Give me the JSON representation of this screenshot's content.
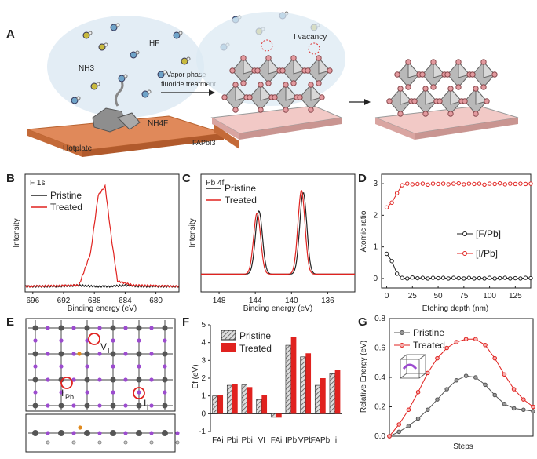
{
  "panel_labels": {
    "A": "A",
    "B": "B",
    "C": "C",
    "D": "D",
    "E": "E",
    "F": "F",
    "G": "G"
  },
  "scheme": {
    "nh3": "NH3",
    "hf": "HF",
    "nh4f": "NH4F",
    "hotplate": "Hotplate",
    "arrow_label_1": "Vapor phase",
    "arrow_label_2": "fluoride treatment",
    "vacancy": "I vacancy",
    "fapbi3": "FAPbI3"
  },
  "colors": {
    "pristine": "#222222",
    "treated": "#e0221f",
    "bar_treated": "#e0221f",
    "hotplate": "#e0895a",
    "substrate": "#f2c9c6"
  },
  "chart_data": [
    {
      "id": "B",
      "type": "line",
      "tag": "F 1s",
      "xlabel": "Binding energy (eV)",
      "ylabel": "Intensity",
      "xlim": [
        697,
        677
      ],
      "xticks": [
        696,
        692,
        688,
        684,
        680
      ],
      "legend": [
        "Pristine",
        "Treated"
      ],
      "series": [
        {
          "name": "Pristine",
          "x": [
            697,
            693,
            690,
            688,
            686,
            684,
            682,
            677
          ],
          "y": [
            0.05,
            0.05,
            0.06,
            0.05,
            0.05,
            0.06,
            0.05,
            0.05
          ]
        },
        {
          "name": "Treated",
          "x": [
            697,
            690,
            688.5,
            687.5,
            686.6,
            685.8,
            685,
            683,
            677
          ],
          "y": [
            0.05,
            0.06,
            0.35,
            0.88,
            0.96,
            0.5,
            0.1,
            0.06,
            0.05
          ]
        }
      ]
    },
    {
      "id": "C",
      "type": "line",
      "tag": "Pb 4f",
      "xlabel": "Binding energy (eV)",
      "ylabel": "Intensity",
      "xlim": [
        150,
        133
      ],
      "xticks": [
        148,
        144,
        140,
        136
      ],
      "legend": [
        "Pristine",
        "Treated"
      ],
      "series": [
        {
          "name": "Pristine",
          "peaks": [
            143.6,
            138.7
          ],
          "heights": [
            0.62,
            0.8
          ]
        },
        {
          "name": "Treated",
          "peaks": [
            143.8,
            138.9
          ],
          "heights": [
            0.6,
            0.82
          ]
        }
      ]
    },
    {
      "id": "D",
      "type": "line",
      "xlabel": "Etching depth (nm)",
      "ylabel": "Atomic ratio",
      "xlim": [
        -5,
        140
      ],
      "ylim": [
        -0.3,
        3.3
      ],
      "xticks": [
        0,
        25,
        50,
        75,
        100,
        125
      ],
      "yticks": [
        0,
        1,
        2,
        3
      ],
      "series": [
        {
          "name": "[F/Pb]",
          "x": [
            0,
            5,
            10,
            15,
            20,
            25,
            30,
            35,
            40,
            45,
            50,
            55,
            60,
            65,
            70,
            75,
            80,
            85,
            90,
            95,
            100,
            105,
            110,
            115,
            120,
            125,
            130,
            135,
            140
          ],
          "y": [
            0.78,
            0.55,
            0.15,
            0.02,
            0.0,
            0.03,
            0.01,
            0.02,
            0.0,
            0.02,
            0.01,
            0.02,
            0.0,
            0.02,
            0.01,
            0.0,
            0.02,
            0.0,
            0.01,
            0.0,
            0.02,
            0.0,
            0.01,
            0.02,
            0.0,
            0.01,
            0.0,
            0.02,
            0.01
          ]
        },
        {
          "name": "[I/Pb]",
          "x": [
            0,
            5,
            10,
            15,
            20,
            25,
            30,
            35,
            40,
            45,
            50,
            55,
            60,
            65,
            70,
            75,
            80,
            85,
            90,
            95,
            100,
            105,
            110,
            115,
            120,
            125,
            130,
            135,
            140
          ],
          "y": [
            2.25,
            2.4,
            2.7,
            2.95,
            3.0,
            2.98,
            2.99,
            3.0,
            2.97,
            3.0,
            2.99,
            3.0,
            2.98,
            3.0,
            3.01,
            2.98,
            3.0,
            2.99,
            3.0,
            2.97,
            3.0,
            2.99,
            3.01,
            2.98,
            3.0,
            2.99,
            3.0,
            2.99,
            3.0
          ]
        }
      ]
    },
    {
      "id": "F",
      "type": "bar",
      "ylabel": "Ef (eV)",
      "ylim": [
        -1,
        5
      ],
      "yticks": [
        -1,
        0,
        1,
        2,
        3,
        4,
        5
      ],
      "categories": [
        "FAi",
        "Pbi",
        "Pbi",
        "VI",
        "FAi",
        "IPb",
        "VPb",
        "FAPb",
        "Ii"
      ],
      "series": [
        {
          "name": "Pristine",
          "values": [
            1.0,
            1.6,
            1.62,
            0.8,
            -0.2,
            3.85,
            3.2,
            1.6,
            2.25
          ]
        },
        {
          "name": "Treated",
          "values": [
            1.05,
            1.68,
            1.5,
            1.05,
            -0.22,
            4.3,
            3.4,
            2.0,
            2.45
          ]
        }
      ]
    },
    {
      "id": "G",
      "type": "line",
      "xlabel": "Steps",
      "ylabel": "Relative Energy (eV)",
      "ylim": [
        0,
        0.8
      ],
      "yticks": [
        0,
        0.2,
        0.4,
        0.6,
        0.8
      ],
      "series": [
        {
          "name": "Pristine",
          "y": [
            0.0,
            0.03,
            0.07,
            0.12,
            0.18,
            0.25,
            0.32,
            0.38,
            0.41,
            0.4,
            0.35,
            0.28,
            0.22,
            0.19,
            0.18,
            0.17
          ]
        },
        {
          "name": "Treated",
          "y": [
            0.0,
            0.08,
            0.18,
            0.3,
            0.43,
            0.53,
            0.6,
            0.64,
            0.66,
            0.66,
            0.62,
            0.53,
            0.42,
            0.32,
            0.25,
            0.2
          ]
        }
      ]
    }
  ],
  "struct": {
    "vi": "V",
    "vi_sub": "I",
    "ipb": "I",
    "ipb_sub": "Pb",
    "ii": "I",
    "ii_sub": "i"
  }
}
